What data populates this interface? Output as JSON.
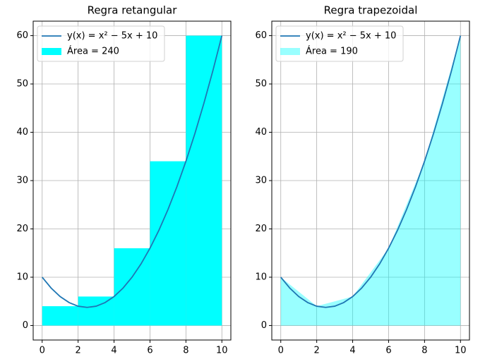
{
  "chart_data": [
    {
      "type": "histogram",
      "title": "Regra retangular",
      "xlim": [
        -0.5,
        10.5
      ],
      "ylim": [
        -3,
        63
      ],
      "xticks": [
        0,
        2,
        4,
        6,
        8,
        10
      ],
      "yticks": [
        0,
        10,
        20,
        30,
        40,
        50,
        60
      ],
      "grid": true,
      "legend": "upper left",
      "series": [
        {
          "name": "y(x) = x² − 5x + 10",
          "type": "line",
          "color": "#1f77b4",
          "x": [
            0,
            0.5,
            1,
            1.5,
            2,
            2.5,
            3,
            3.5,
            4,
            4.5,
            5,
            5.5,
            6,
            6.5,
            7,
            7.5,
            8,
            8.5,
            9,
            9.5,
            10
          ],
          "values": [
            10,
            7.75,
            6,
            4.75,
            4,
            3.75,
            4,
            4.75,
            6,
            7.75,
            10,
            12.75,
            16,
            19.75,
            24,
            28.75,
            34,
            39.75,
            46,
            52.75,
            60
          ]
        },
        {
          "name": "Área = 240",
          "type": "histogram",
          "color": "#00ffff",
          "bins": [
            0,
            2,
            4,
            6,
            8,
            10
          ],
          "values": [
            4,
            6,
            16,
            34,
            60
          ]
        }
      ]
    },
    {
      "type": "area",
      "title": "Regra trapezoidal",
      "xlim": [
        -0.5,
        10.5
      ],
      "ylim": [
        -3,
        63
      ],
      "xticks": [
        0,
        2,
        4,
        6,
        8,
        10
      ],
      "yticks": [
        0,
        10,
        20,
        30,
        40,
        50,
        60
      ],
      "grid": true,
      "legend": "upper left",
      "series": [
        {
          "name": "y(x) = x² − 5x + 10",
          "type": "line",
          "color": "#1f77b4",
          "x": [
            0,
            0.5,
            1,
            1.5,
            2,
            2.5,
            3,
            3.5,
            4,
            4.5,
            5,
            5.5,
            6,
            6.5,
            7,
            7.5,
            8,
            8.5,
            9,
            9.5,
            10
          ],
          "values": [
            10,
            7.75,
            6,
            4.75,
            4,
            3.75,
            4,
            4.75,
            6,
            7.75,
            10,
            12.75,
            16,
            19.75,
            24,
            28.75,
            34,
            39.75,
            46,
            52.75,
            60
          ]
        },
        {
          "name": "Área = 190",
          "type": "area",
          "color": "rgba(0,255,255,0.4)",
          "x": [
            0,
            2,
            4,
            6,
            8,
            10
          ],
          "values": [
            10,
            4,
            6,
            16,
            34,
            60
          ]
        }
      ]
    }
  ]
}
